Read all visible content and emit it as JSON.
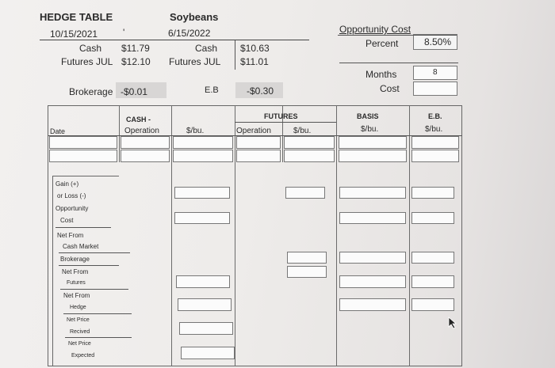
{
  "header": {
    "title": "HEDGE TABLE",
    "date1": "10/15/2021",
    "commodity": "Soybeans",
    "date2": "6/15/2022",
    "tick": "'",
    "cash_label1": "Cash",
    "cash_value1": "$11.79",
    "futures_label1": "Futures JUL",
    "futures_value1": "$12.10",
    "cash_label2": "Cash",
    "cash_value2": "$10.63",
    "futures_label2": "Futures JUL",
    "futures_value2": "$11.01",
    "brokerage_label": "Brokerage",
    "brokerage_value": "-$0.01",
    "eb_label": "E.B",
    "eb_value": "-$0.30"
  },
  "opportunity": {
    "title": "Opportunity Cost",
    "percent_label": "Percent",
    "percent_value": "8.50%",
    "months_label": "Months",
    "months_value": "8",
    "cost_label": "Cost",
    "cost_value": ""
  },
  "table": {
    "cash_header": "CASH -",
    "futures_header": "FUTURES",
    "basis_header": "BASIS",
    "eb_header": "E.B.",
    "date_col": "Date",
    "operation_col": "Operation",
    "per_bu_col": "$/bu.",
    "fut_operation_col": "Operation",
    "fut_per_bu_col": "$/bu.",
    "basis_unit": "$/bu.",
    "eb_unit": "$/bu."
  },
  "rows": [
    "Gain (+)",
    "or Loss (-)",
    "Opportunity",
    "Cost",
    "Net From",
    "Cash Market",
    "Brokerage",
    "Net From",
    "Futures",
    "Net From",
    "Hedge",
    "Net Price",
    "Recived",
    "Net Price",
    "Expected"
  ]
}
